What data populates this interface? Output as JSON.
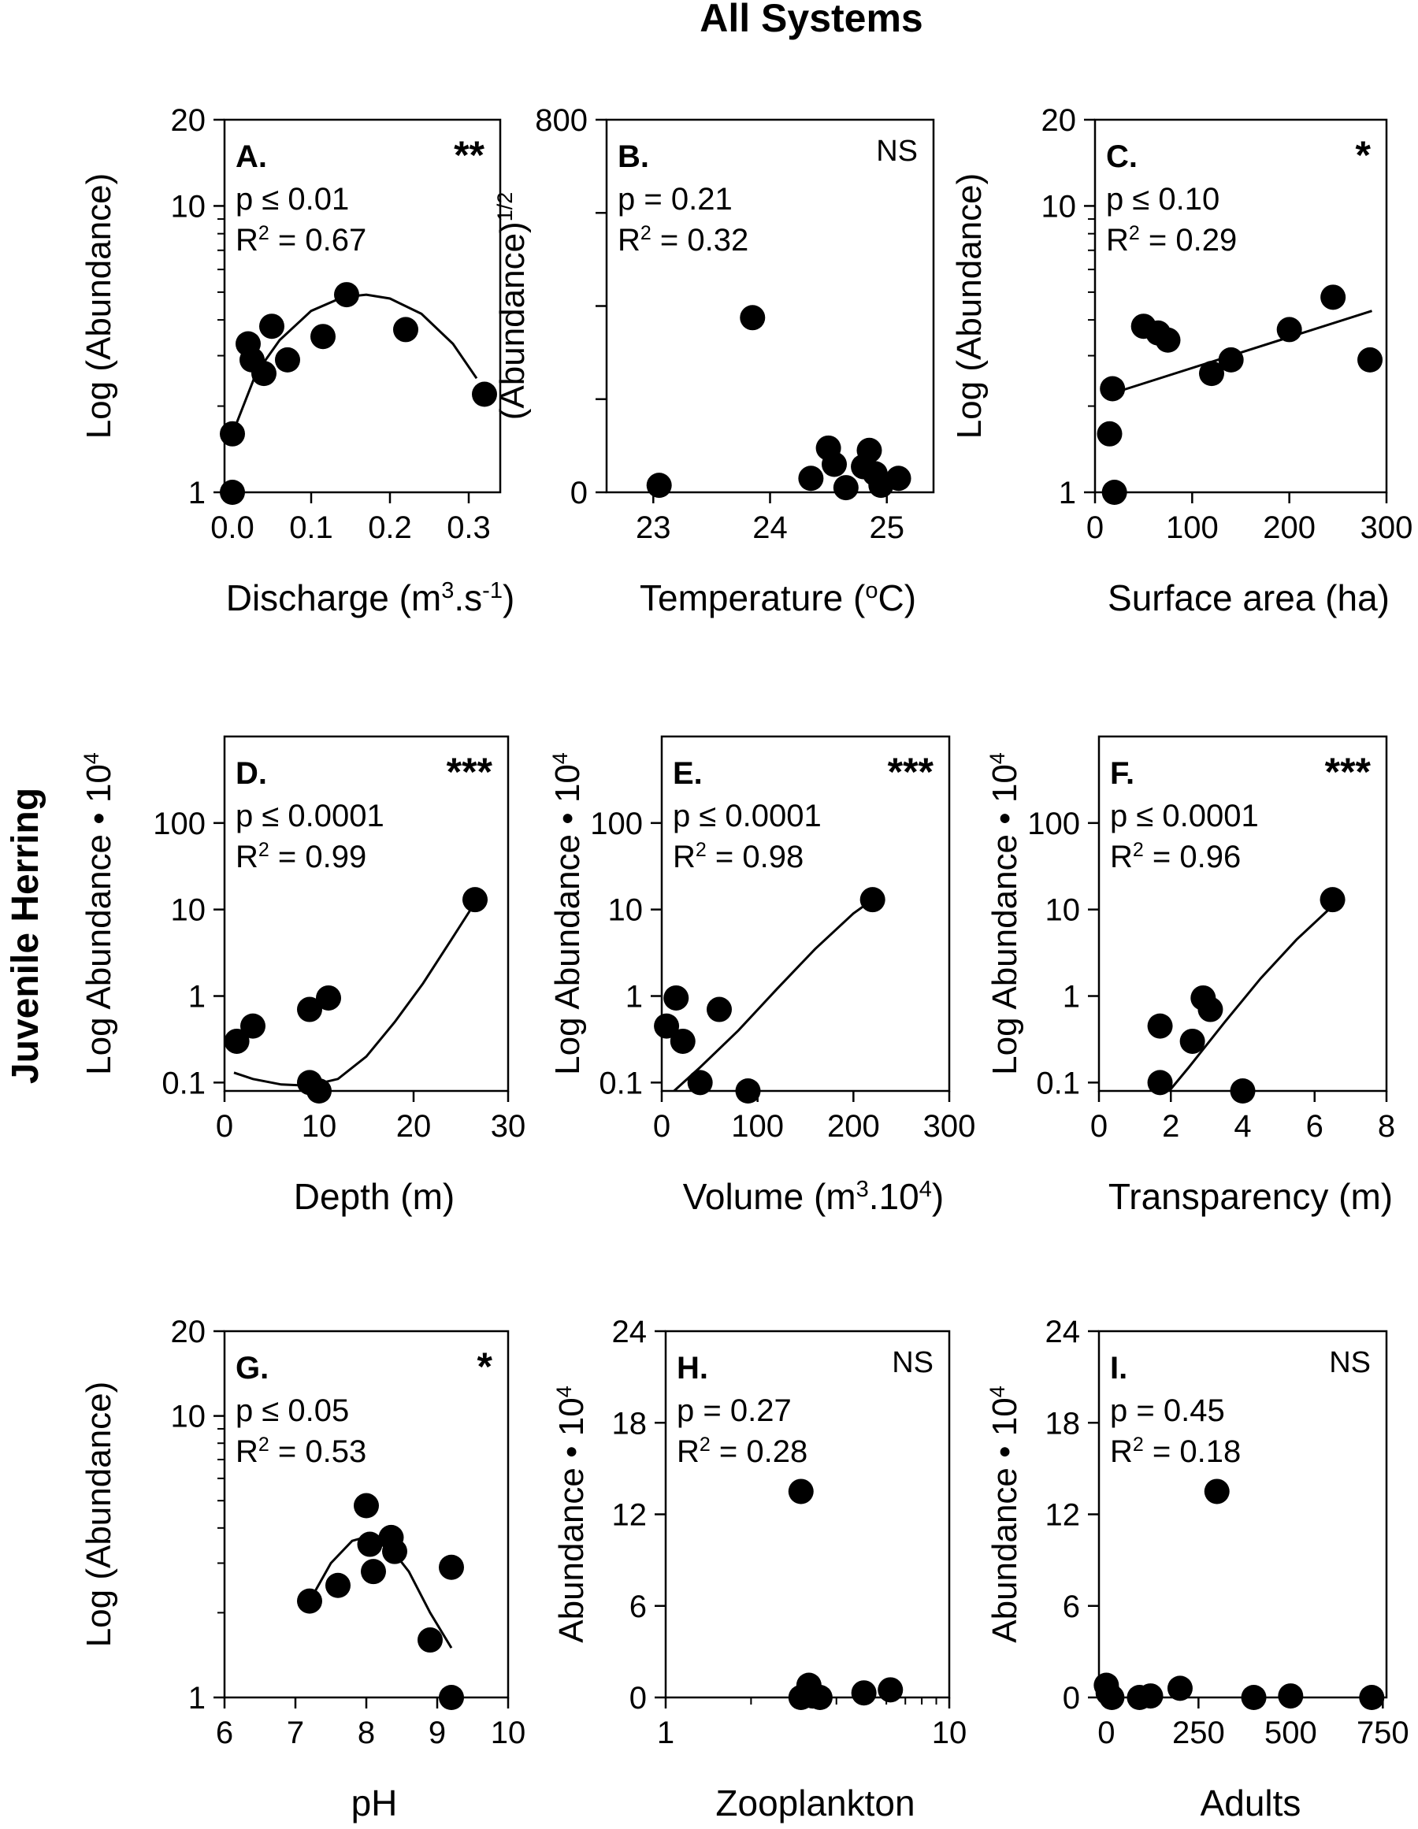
{
  "figure": {
    "title": "All Systems",
    "side_label": "Juvenile Herring"
  },
  "chart_data": [
    {
      "id": "A",
      "type": "scatter",
      "panel_label": "A.",
      "significance": "**",
      "stat_p": "p ≤ 0.01",
      "stat_r2_prefix": "R",
      "stat_r2_suffix": " = 0.67",
      "xlabel": "Discharge (m",
      "xlabel_sup1": "3",
      "xlabel_mid": ".s",
      "xlabel_sup2": "-1",
      "xlabel_end": ")",
      "ylabel": "Log (Abundance)",
      "xscale": "linear",
      "yscale": "log",
      "xlim": [
        -0.01,
        0.34
      ],
      "ylim": [
        1,
        20
      ],
      "xticks": [
        0.0,
        0.1,
        0.2,
        0.3
      ],
      "xtick_labels": [
        "0.0",
        "0.1",
        "0.2",
        "0.3"
      ],
      "yticks": [
        1,
        10,
        20
      ],
      "ytick_labels": [
        "1",
        "10",
        "20"
      ],
      "yminor": [
        2,
        3,
        4,
        5,
        6,
        7,
        8,
        9
      ],
      "points": [
        [
          0.0,
          1.0
        ],
        [
          0.0,
          1.6
        ],
        [
          0.02,
          3.3
        ],
        [
          0.025,
          2.9
        ],
        [
          0.04,
          2.6
        ],
        [
          0.05,
          3.8
        ],
        [
          0.07,
          2.9
        ],
        [
          0.115,
          3.5
        ],
        [
          0.145,
          4.9
        ],
        [
          0.22,
          3.7
        ],
        [
          0.32,
          2.2
        ]
      ],
      "fit": [
        [
          0.0,
          1.6
        ],
        [
          0.03,
          2.6
        ],
        [
          0.06,
          3.4
        ],
        [
          0.1,
          4.3
        ],
        [
          0.14,
          4.8
        ],
        [
          0.17,
          4.9
        ],
        [
          0.2,
          4.75
        ],
        [
          0.24,
          4.2
        ],
        [
          0.28,
          3.3
        ],
        [
          0.31,
          2.5
        ]
      ]
    },
    {
      "id": "B",
      "type": "scatter",
      "panel_label": "B.",
      "significance": "NS",
      "stat_p": "p = 0.21",
      "stat_r2_prefix": "R",
      "stat_r2_suffix": " = 0.32",
      "xlabel": "Temperature (",
      "xlabel_sup1": "o",
      "xlabel_mid": "C)",
      "xlabel_sup2": "",
      "xlabel_end": "",
      "ylabel": "(Abundance)",
      "ylabel_sup": "1/2",
      "xscale": "linear",
      "yscale": "linear",
      "xlim": [
        22.6,
        25.4
      ],
      "ylim": [
        0,
        800
      ],
      "xticks": [
        23,
        24,
        25
      ],
      "xtick_labels": [
        "23",
        "24",
        "25"
      ],
      "yticks": [
        0,
        200,
        400,
        600,
        800
      ],
      "ytick_labels": [
        "0",
        "",
        "",
        "",
        "800"
      ],
      "points": [
        [
          23.05,
          15
        ],
        [
          23.85,
          375
        ],
        [
          24.35,
          30
        ],
        [
          24.5,
          95
        ],
        [
          24.55,
          60
        ],
        [
          24.65,
          10
        ],
        [
          24.8,
          55
        ],
        [
          24.85,
          90
        ],
        [
          24.95,
          15
        ],
        [
          25.1,
          30
        ],
        [
          24.9,
          40
        ]
      ],
      "fit": []
    },
    {
      "id": "C",
      "type": "scatter",
      "panel_label": "C.",
      "significance": "*",
      "stat_p": "p ≤ 0.10",
      "stat_r2_prefix": "R",
      "stat_r2_suffix": " = 0.29",
      "xlabel": "Surface area (ha)",
      "xlabel_sup1": "",
      "xlabel_mid": "",
      "xlabel_sup2": "",
      "xlabel_end": "",
      "ylabel": "Log (Abundance)",
      "xscale": "linear",
      "yscale": "log",
      "xlim": [
        0,
        300
      ],
      "ylim": [
        1,
        20
      ],
      "xticks": [
        0,
        100,
        200,
        300
      ],
      "xtick_labels": [
        "0",
        "100",
        "200",
        "300"
      ],
      "yticks": [
        1,
        10,
        20
      ],
      "ytick_labels": [
        "1",
        "10",
        "20"
      ],
      "yminor": [
        2,
        3,
        4,
        5,
        6,
        7,
        8,
        9
      ],
      "points": [
        [
          20,
          1.0
        ],
        [
          15,
          1.6
        ],
        [
          18,
          2.3
        ],
        [
          50,
          3.8
        ],
        [
          65,
          3.6
        ],
        [
          75,
          3.4
        ],
        [
          120,
          2.6
        ],
        [
          140,
          2.9
        ],
        [
          200,
          3.7
        ],
        [
          245,
          4.8
        ],
        [
          283,
          2.9
        ]
      ],
      "fit": [
        [
          15,
          2.2
        ],
        [
          285,
          4.3
        ]
      ]
    },
    {
      "id": "D",
      "type": "scatter",
      "panel_label": "D.",
      "significance": "***",
      "stat_p": "p ≤ 0.0001",
      "stat_r2_prefix": "R",
      "stat_r2_suffix": " = 0.99",
      "xlabel": "Depth (m)",
      "xlabel_sup1": "",
      "xlabel_mid": "",
      "xlabel_sup2": "",
      "xlabel_end": "",
      "ylabel": "Log Abundance",
      "ylabel_tail": "10",
      "ylabel_sup": "4",
      "xscale": "linear",
      "yscale": "log",
      "xlim": [
        0,
        30
      ],
      "ylim": [
        0.08,
        1000
      ],
      "xticks": [
        0,
        10,
        20,
        30
      ],
      "xtick_labels": [
        "0",
        "10",
        "20",
        "30"
      ],
      "yticks": [
        0.1,
        1,
        10,
        100
      ],
      "ytick_labels": [
        "0.1",
        "1",
        "10",
        "100"
      ],
      "points": [
        [
          1.3,
          0.3
        ],
        [
          3,
          0.45
        ],
        [
          9,
          0.7
        ],
        [
          11,
          0.95
        ],
        [
          9,
          0.1
        ],
        [
          10,
          0.08
        ],
        [
          26.5,
          13
        ]
      ],
      "fit": [
        [
          1,
          0.13
        ],
        [
          3,
          0.11
        ],
        [
          6,
          0.095
        ],
        [
          9,
          0.092
        ],
        [
          12,
          0.11
        ],
        [
          15,
          0.2
        ],
        [
          18,
          0.5
        ],
        [
          21,
          1.4
        ],
        [
          24,
          4.5
        ],
        [
          26.5,
          12
        ]
      ]
    },
    {
      "id": "E",
      "type": "scatter",
      "panel_label": "E.",
      "significance": "***",
      "stat_p": "p ≤ 0.0001",
      "stat_r2_prefix": "R",
      "stat_r2_suffix": " = 0.98",
      "xlabel": "Volume (m",
      "xlabel_sup1": "3",
      "xlabel_mid": ".10",
      "xlabel_sup2": "4",
      "xlabel_end": ")",
      "ylabel": "Log Abundance",
      "ylabel_tail": "10",
      "ylabel_sup": "4",
      "xscale": "linear",
      "yscale": "log",
      "xlim": [
        0,
        300
      ],
      "ylim": [
        0.08,
        1000
      ],
      "xticks": [
        0,
        100,
        200,
        300
      ],
      "xtick_labels": [
        "0",
        "100",
        "200",
        "300"
      ],
      "yticks": [
        0.1,
        1,
        10,
        100
      ],
      "ytick_labels": [
        "0.1",
        "1",
        "10",
        "100"
      ],
      "points": [
        [
          5,
          0.45
        ],
        [
          15,
          0.95
        ],
        [
          22,
          0.3
        ],
        [
          40,
          0.1
        ],
        [
          60,
          0.7
        ],
        [
          90,
          0.08
        ],
        [
          220,
          13
        ]
      ],
      "fit": [
        [
          10,
          0.075
        ],
        [
          40,
          0.15
        ],
        [
          80,
          0.4
        ],
        [
          120,
          1.2
        ],
        [
          160,
          3.5
        ],
        [
          200,
          9
        ],
        [
          220,
          13
        ]
      ]
    },
    {
      "id": "F",
      "type": "scatter",
      "panel_label": "F.",
      "significance": "***",
      "stat_p": "p ≤ 0.0001",
      "stat_r2_prefix": "R",
      "stat_r2_suffix": " = 0.96",
      "xlabel": "Transparency (m)",
      "xlabel_sup1": "",
      "xlabel_mid": "",
      "xlabel_sup2": "",
      "xlabel_end": "",
      "ylabel": "Log Abundance",
      "ylabel_tail": "10",
      "ylabel_sup": "4",
      "xscale": "linear",
      "yscale": "log",
      "xlim": [
        0,
        8
      ],
      "ylim": [
        0.08,
        1000
      ],
      "xticks": [
        0,
        2,
        4,
        6,
        8
      ],
      "xtick_labels": [
        "0",
        "2",
        "4",
        "6",
        "8"
      ],
      "yticks": [
        0.1,
        1,
        10,
        100
      ],
      "ytick_labels": [
        "0.1",
        "1",
        "10",
        "100"
      ],
      "points": [
        [
          1.7,
          0.45
        ],
        [
          1.7,
          0.1
        ],
        [
          2.6,
          0.3
        ],
        [
          2.9,
          0.95
        ],
        [
          3.1,
          0.7
        ],
        [
          4.0,
          0.08
        ],
        [
          6.5,
          13
        ]
      ],
      "fit": [
        [
          1.9,
          0.075
        ],
        [
          2.5,
          0.15
        ],
        [
          3.5,
          0.5
        ],
        [
          4.5,
          1.6
        ],
        [
          5.5,
          4.5
        ],
        [
          6.5,
          11
        ]
      ]
    },
    {
      "id": "G",
      "type": "scatter",
      "panel_label": "G.",
      "significance": "*",
      "stat_p": "p ≤ 0.05",
      "stat_r2_prefix": "R",
      "stat_r2_suffix": " = 0.53",
      "xlabel": "pH",
      "xlabel_sup1": "",
      "xlabel_mid": "",
      "xlabel_sup2": "",
      "xlabel_end": "",
      "ylabel": "Log (Abundance)",
      "xscale": "linear",
      "yscale": "log",
      "xlim": [
        6,
        10
      ],
      "ylim": [
        1,
        20
      ],
      "xticks": [
        6,
        7,
        8,
        9,
        10
      ],
      "xtick_labels": [
        "6",
        "7",
        "8",
        "9",
        "10"
      ],
      "yticks": [
        1,
        10,
        20
      ],
      "ytick_labels": [
        "1",
        "10",
        "20"
      ],
      "yminor": [
        2,
        3,
        4,
        5,
        6,
        7,
        8,
        9
      ],
      "points": [
        [
          7.2,
          2.2
        ],
        [
          7.6,
          2.5
        ],
        [
          8.0,
          4.8
        ],
        [
          8.05,
          3.5
        ],
        [
          8.1,
          2.8
        ],
        [
          8.35,
          3.7
        ],
        [
          8.4,
          3.3
        ],
        [
          8.9,
          1.6
        ],
        [
          9.2,
          2.9
        ],
        [
          9.2,
          1.0
        ]
      ],
      "fit": [
        [
          7.2,
          2.2
        ],
        [
          7.5,
          3.0
        ],
        [
          7.8,
          3.6
        ],
        [
          8.05,
          3.75
        ],
        [
          8.3,
          3.5
        ],
        [
          8.6,
          2.8
        ],
        [
          8.9,
          2.0
        ],
        [
          9.2,
          1.5
        ]
      ]
    },
    {
      "id": "H",
      "type": "scatter",
      "panel_label": "H.",
      "significance": "NS",
      "stat_p": "p = 0.27",
      "stat_r2_prefix": "R",
      "stat_r2_suffix": " = 0.28",
      "xlabel": "Zooplankton",
      "xlabel_sup1": "",
      "xlabel_mid": "",
      "xlabel_sup2": "",
      "xlabel_end": "",
      "ylabel": "Abundance",
      "ylabel_tail": "10",
      "ylabel_sup": "4",
      "xscale": "log",
      "yscale": "linear",
      "xlim": [
        1,
        10
      ],
      "ylim": [
        0,
        24
      ],
      "xticks": [
        1,
        10
      ],
      "xtick_labels": [
        "1",
        "10"
      ],
      "xminor": [
        2,
        3,
        4,
        5,
        6,
        7,
        8,
        9
      ],
      "yticks": [
        0,
        6,
        12,
        18,
        24
      ],
      "ytick_labels": [
        "0",
        "6",
        "12",
        "18",
        "24"
      ],
      "points": [
        [
          3.0,
          13.5
        ],
        [
          3.0,
          0.0
        ],
        [
          3.2,
          0.8
        ],
        [
          3.3,
          0.1
        ],
        [
          3.5,
          0.0
        ],
        [
          5.0,
          0.3
        ],
        [
          6.2,
          0.5
        ]
      ],
      "fit": []
    },
    {
      "id": "I",
      "type": "scatter",
      "panel_label": "I.",
      "significance": "NS",
      "stat_p": "p = 0.45",
      "stat_r2_prefix": "R",
      "stat_r2_suffix": " = 0.18",
      "xlabel": "Adults",
      "xlabel_sup1": "",
      "xlabel_mid": "",
      "xlabel_sup2": "",
      "xlabel_end": "",
      "ylabel": "Abundance",
      "ylabel_tail": "10",
      "ylabel_sup": "4",
      "xscale": "linear",
      "yscale": "linear",
      "xlim": [
        -20,
        760
      ],
      "ylim": [
        0,
        24
      ],
      "xticks": [
        0,
        250,
        500,
        750
      ],
      "xtick_labels": [
        "0",
        "250",
        "500",
        "750"
      ],
      "yticks": [
        0,
        6,
        12,
        18,
        24
      ],
      "ytick_labels": [
        "0",
        "6",
        "12",
        "18",
        "24"
      ],
      "points": [
        [
          0,
          0.8
        ],
        [
          5,
          0.3
        ],
        [
          15,
          0.0
        ],
        [
          90,
          0.0
        ],
        [
          120,
          0.1
        ],
        [
          200,
          0.6
        ],
        [
          300,
          13.5
        ],
        [
          400,
          0.0
        ],
        [
          500,
          0.1
        ],
        [
          720,
          0.0
        ]
      ],
      "fit": []
    }
  ]
}
